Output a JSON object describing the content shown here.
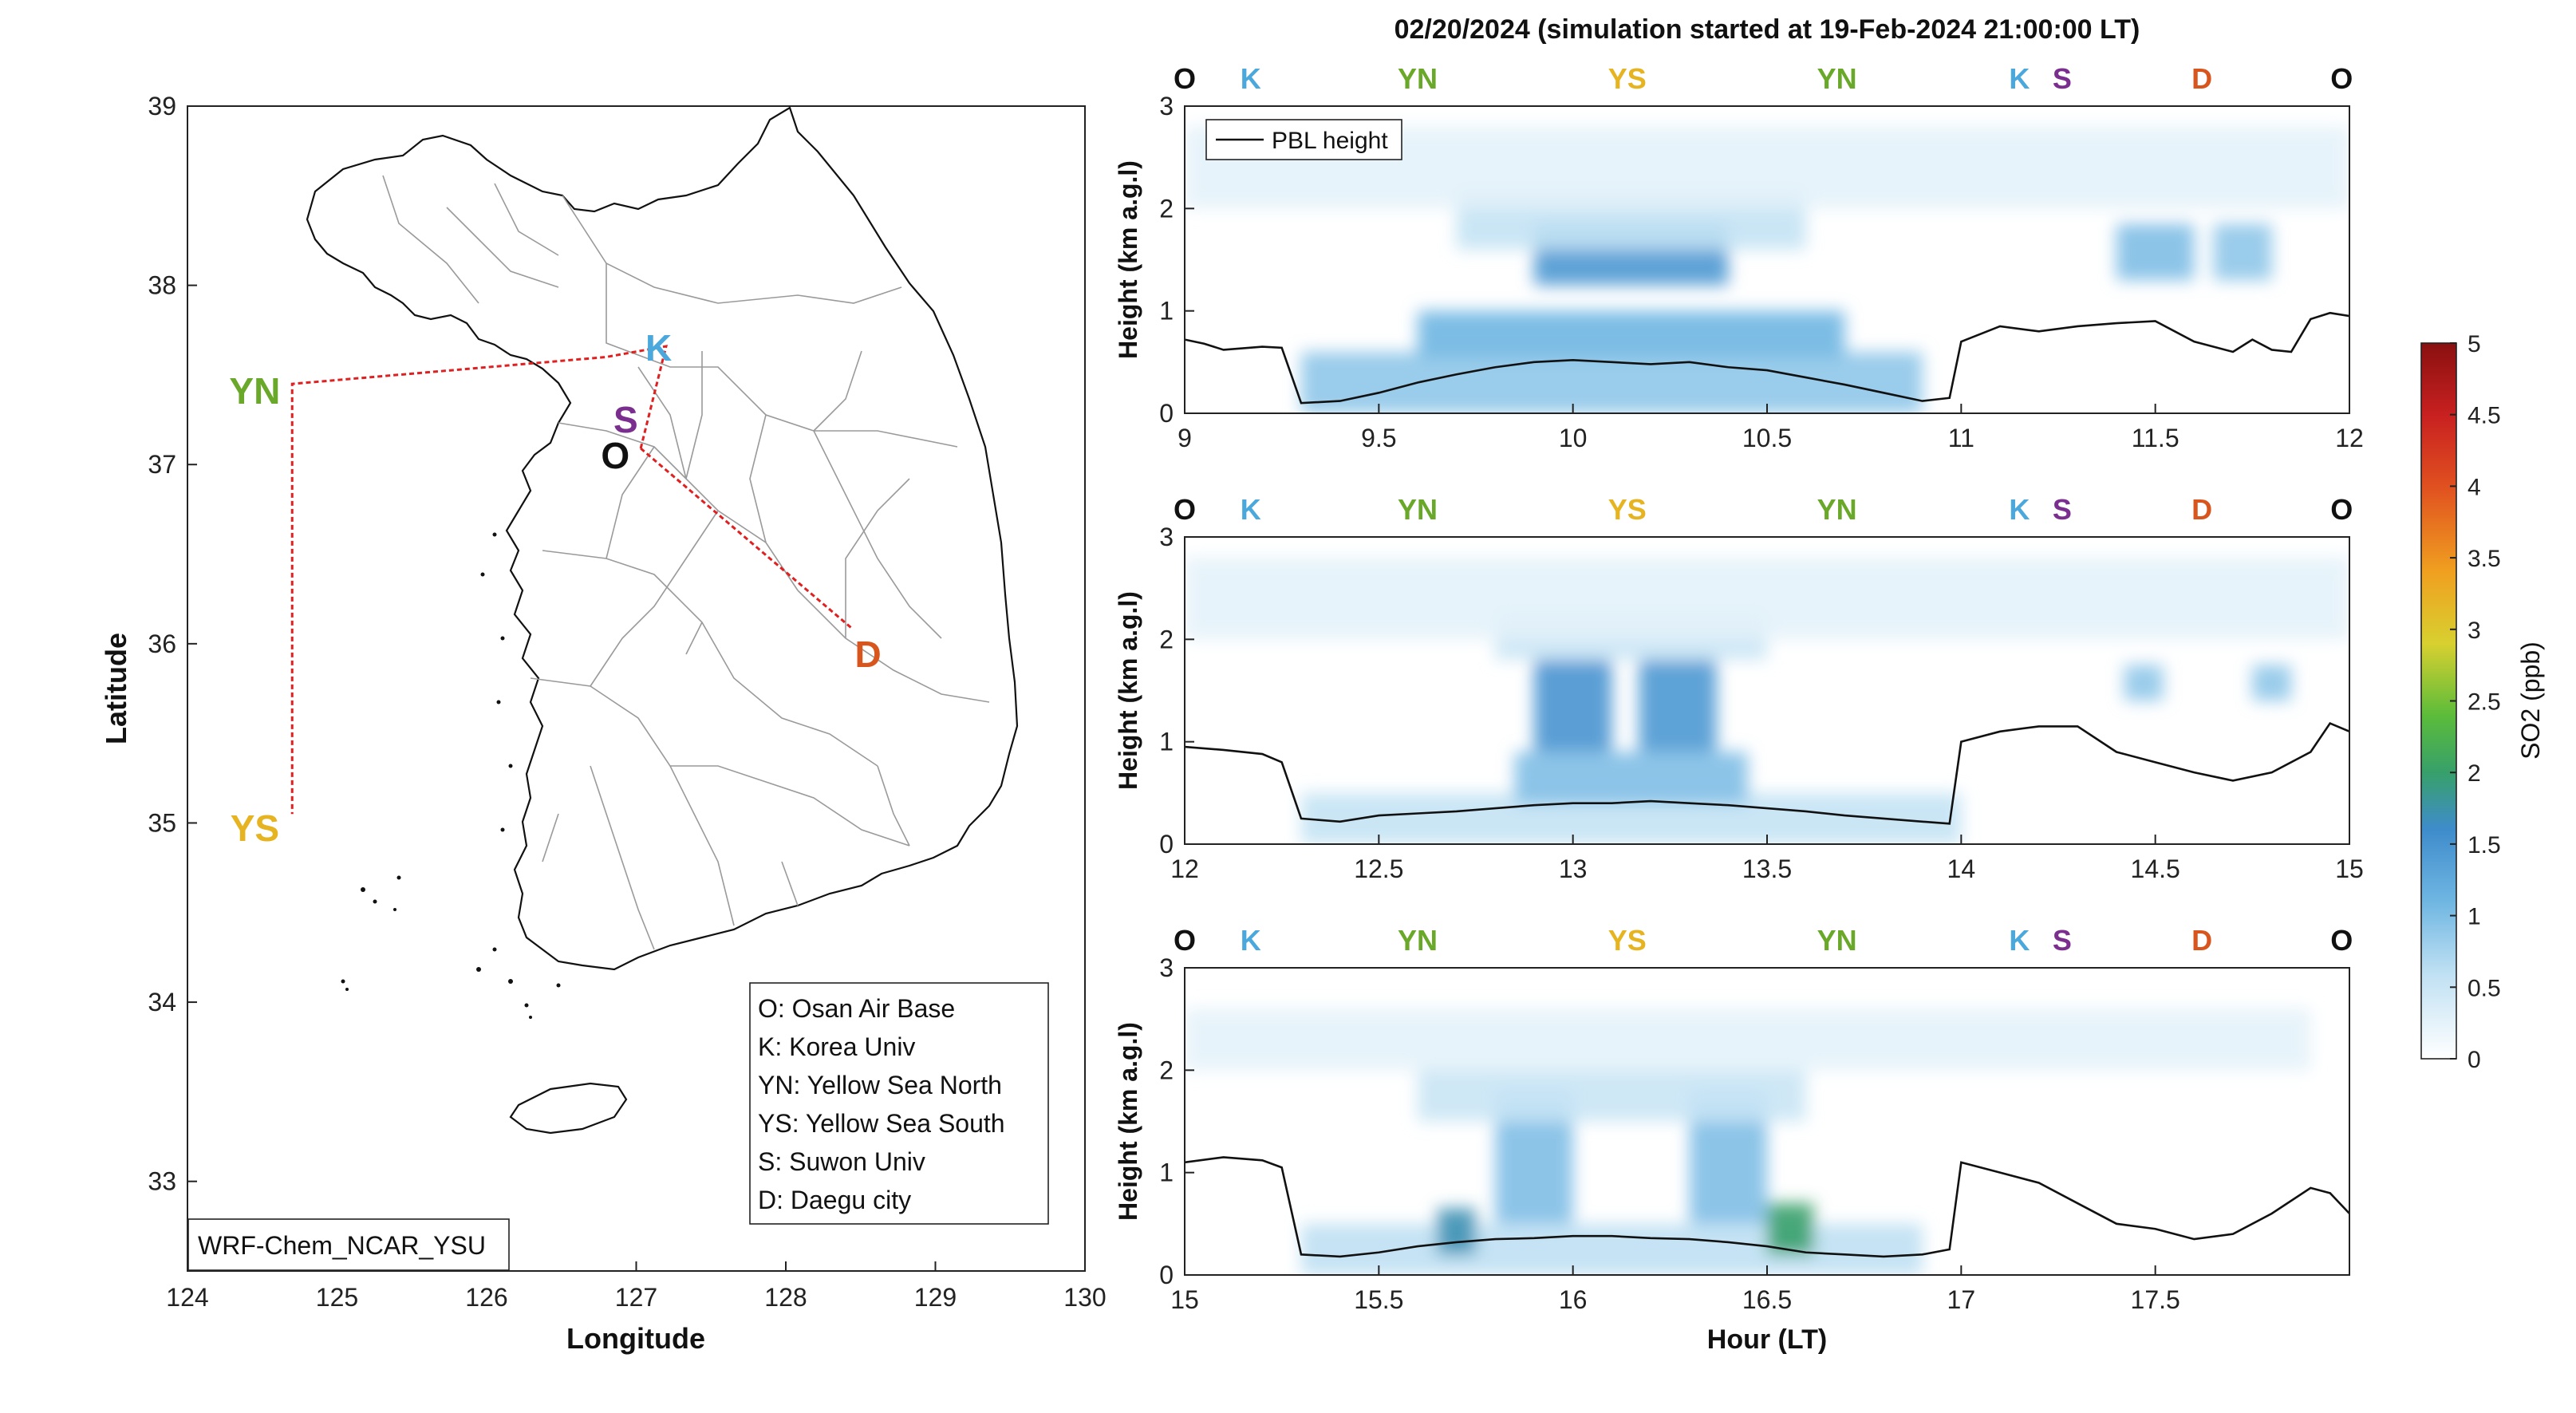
{
  "title": "02/20/2024 (simulation started at 19-Feb-2024 21:00:00 LT)",
  "colors": {
    "O": "#111111",
    "K": "#4aa8dc",
    "YN": "#6aa82a",
    "YS": "#e6b321",
    "S": "#7a2f8f",
    "D": "#d8561d",
    "track": "#e02020",
    "pbl": "#111111"
  },
  "map": {
    "xlabel": "Longitude",
    "ylabel": "Latitude",
    "xlim": [
      124,
      130
    ],
    "ylim": [
      32.5,
      39
    ],
    "xticks": [
      "124",
      "125",
      "126",
      "127",
      "128",
      "129",
      "130"
    ],
    "yticks": [
      "33",
      "34",
      "35",
      "36",
      "37",
      "38",
      "39"
    ],
    "model_label": "WRF-Chem_NCAR_YSU",
    "sites": [
      {
        "code": "K",
        "lon": 127.2,
        "lat": 37.7,
        "label_lon": 127.15,
        "label_lat": 37.66
      },
      {
        "code": "S",
        "lon": 126.98,
        "lat": 37.28,
        "label_lon": 126.93,
        "label_lat": 37.26
      },
      {
        "code": "O",
        "lon": 127.03,
        "lat": 37.09,
        "label_lon": 126.86,
        "label_lat": 37.06
      },
      {
        "code": "YN",
        "lon": 124.7,
        "lat": 37.45,
        "label_lon": 124.45,
        "label_lat": 37.42
      },
      {
        "code": "YS",
        "lon": 124.7,
        "lat": 35.05,
        "label_lon": 124.45,
        "label_lat": 34.98
      },
      {
        "code": "D",
        "lon": 128.58,
        "lat": 36.09,
        "label_lon": 128.55,
        "label_lat": 35.95
      }
    ],
    "track": [
      [
        127.03,
        37.09
      ],
      [
        127.2,
        37.66
      ],
      [
        126.8,
        37.6
      ],
      [
        124.7,
        37.45
      ],
      [
        124.7,
        35.05
      ]
    ],
    "track2": [
      [
        127.03,
        37.09
      ],
      [
        128.45,
        36.08
      ]
    ],
    "legend": [
      "O: Osan Air Base",
      "K: Korea Univ",
      "YN: Yellow Sea North",
      "YS: Yellow Sea South",
      "S: Suwon Univ",
      "D: Daegu city"
    ]
  },
  "curtains": [
    {
      "xlim": [
        9,
        12
      ],
      "xticks": [
        "9",
        "9.5",
        "10",
        "10.5",
        "11",
        "11.5",
        "12"
      ],
      "sites": [
        {
          "code": "O",
          "x": 9.0
        },
        {
          "code": "K",
          "x": 9.17
        },
        {
          "code": "YN",
          "x": 9.6
        },
        {
          "code": "YS",
          "x": 10.14
        },
        {
          "code": "YN",
          "x": 10.68
        },
        {
          "code": "K",
          "x": 11.15
        },
        {
          "code": "S",
          "x": 11.26
        },
        {
          "code": "D",
          "x": 11.62
        },
        {
          "code": "O",
          "x": 11.98
        }
      ],
      "pbl": {
        "x": [
          9.0,
          9.05,
          9.1,
          9.2,
          9.25,
          9.3,
          9.4,
          9.5,
          9.6,
          9.7,
          9.8,
          9.9,
          10.0,
          10.1,
          10.2,
          10.3,
          10.4,
          10.5,
          10.6,
          10.7,
          10.8,
          10.9,
          10.97,
          11.0,
          11.1,
          11.2,
          11.3,
          11.4,
          11.5,
          11.6,
          11.7,
          11.75,
          11.8,
          11.85,
          11.9,
          11.95,
          12.0
        ],
        "y": [
          0.72,
          0.68,
          0.62,
          0.65,
          0.64,
          0.1,
          0.12,
          0.2,
          0.3,
          0.38,
          0.45,
          0.5,
          0.52,
          0.5,
          0.48,
          0.5,
          0.45,
          0.42,
          0.35,
          0.28,
          0.2,
          0.12,
          0.15,
          0.7,
          0.85,
          0.8,
          0.85,
          0.88,
          0.9,
          0.7,
          0.6,
          0.72,
          0.62,
          0.6,
          0.92,
          0.98,
          0.95
        ]
      },
      "so2": [
        {
          "x0": 9.3,
          "x1": 10.9,
          "y0": 0.0,
          "y1": 0.6,
          "v": 0.9
        },
        {
          "x0": 9.6,
          "x1": 10.7,
          "y0": 0.55,
          "y1": 1.0,
          "v": 1.1
        },
        {
          "x0": 9.9,
          "x1": 10.4,
          "y0": 1.25,
          "y1": 1.85,
          "v": 1.45
        },
        {
          "x0": 9.7,
          "x1": 10.6,
          "y0": 1.6,
          "y1": 2.2,
          "v": 0.55
        },
        {
          "x0": 11.4,
          "x1": 11.6,
          "y0": 1.3,
          "y1": 1.85,
          "v": 1.0
        },
        {
          "x0": 11.65,
          "x1": 11.8,
          "y0": 1.3,
          "y1": 1.85,
          "v": 0.9
        },
        {
          "x0": 9.0,
          "x1": 12.0,
          "y0": 2.0,
          "y1": 2.8,
          "v": 0.25
        }
      ]
    },
    {
      "xlim": [
        12,
        15
      ],
      "xticks": [
        "12",
        "12.5",
        "13",
        "13.5",
        "14",
        "14.5",
        "15"
      ],
      "sites": [
        {
          "code": "O",
          "x": 12.0
        },
        {
          "code": "K",
          "x": 12.17
        },
        {
          "code": "YN",
          "x": 12.6
        },
        {
          "code": "YS",
          "x": 13.14
        },
        {
          "code": "YN",
          "x": 13.68
        },
        {
          "code": "K",
          "x": 14.15
        },
        {
          "code": "S",
          "x": 14.26
        },
        {
          "code": "D",
          "x": 14.62
        },
        {
          "code": "O",
          "x": 14.98
        }
      ],
      "pbl": {
        "x": [
          12.0,
          12.1,
          12.2,
          12.25,
          12.3,
          12.4,
          12.5,
          12.6,
          12.7,
          12.8,
          12.9,
          13.0,
          13.1,
          13.2,
          13.3,
          13.4,
          13.5,
          13.6,
          13.7,
          13.8,
          13.9,
          13.97,
          14.0,
          14.1,
          14.2,
          14.3,
          14.4,
          14.5,
          14.6,
          14.7,
          14.8,
          14.9,
          14.95,
          15.0
        ],
        "y": [
          0.95,
          0.92,
          0.88,
          0.8,
          0.25,
          0.22,
          0.28,
          0.3,
          0.32,
          0.35,
          0.38,
          0.4,
          0.4,
          0.42,
          0.4,
          0.38,
          0.35,
          0.32,
          0.28,
          0.25,
          0.22,
          0.2,
          1.0,
          1.1,
          1.15,
          1.15,
          0.9,
          0.8,
          0.7,
          0.62,
          0.7,
          0.9,
          1.18,
          1.1
        ]
      },
      "so2": [
        {
          "x0": 12.3,
          "x1": 14.0,
          "y0": 0.0,
          "y1": 0.5,
          "v": 0.55
        },
        {
          "x0": 12.85,
          "x1": 13.45,
          "y0": 0.4,
          "y1": 0.9,
          "v": 1.0
        },
        {
          "x0": 12.9,
          "x1": 13.1,
          "y0": 0.9,
          "y1": 1.8,
          "v": 1.5
        },
        {
          "x0": 13.17,
          "x1": 13.37,
          "y0": 0.9,
          "y1": 1.8,
          "v": 1.45
        },
        {
          "x0": 12.8,
          "x1": 13.5,
          "y0": 1.8,
          "y1": 2.3,
          "v": 0.5
        },
        {
          "x0": 14.42,
          "x1": 14.52,
          "y0": 1.4,
          "y1": 1.75,
          "v": 0.9
        },
        {
          "x0": 14.75,
          "x1": 14.85,
          "y0": 1.4,
          "y1": 1.75,
          "v": 0.9
        },
        {
          "x0": 12.0,
          "x1": 15.0,
          "y0": 2.0,
          "y1": 2.8,
          "v": 0.25
        }
      ]
    },
    {
      "xlim": [
        15,
        18
      ],
      "xticks": [
        "15",
        "15.5",
        "16",
        "16.5",
        "17",
        "17.5"
      ],
      "sites": [
        {
          "code": "O",
          "x": 15.0
        },
        {
          "code": "K",
          "x": 15.17
        },
        {
          "code": "YN",
          "x": 15.6
        },
        {
          "code": "YS",
          "x": 16.14
        },
        {
          "code": "YN",
          "x": 16.68
        },
        {
          "code": "K",
          "x": 17.15
        },
        {
          "code": "S",
          "x": 17.26
        },
        {
          "code": "D",
          "x": 17.62
        },
        {
          "code": "O",
          "x": 17.98
        }
      ],
      "pbl": {
        "x": [
          15.0,
          15.1,
          15.2,
          15.25,
          15.3,
          15.4,
          15.5,
          15.6,
          15.7,
          15.8,
          15.9,
          16.0,
          16.1,
          16.2,
          16.3,
          16.4,
          16.5,
          16.6,
          16.7,
          16.8,
          16.9,
          16.97,
          17.0,
          17.1,
          17.2,
          17.3,
          17.4,
          17.5,
          17.6,
          17.7,
          17.8,
          17.9,
          17.95,
          18.0
        ],
        "y": [
          1.1,
          1.15,
          1.12,
          1.05,
          0.2,
          0.18,
          0.22,
          0.28,
          0.32,
          0.35,
          0.36,
          0.38,
          0.38,
          0.36,
          0.35,
          0.32,
          0.28,
          0.22,
          0.2,
          0.18,
          0.2,
          0.25,
          1.1,
          1.0,
          0.9,
          0.7,
          0.5,
          0.45,
          0.35,
          0.4,
          0.6,
          0.85,
          0.8,
          0.6
        ]
      },
      "so2": [
        {
          "x0": 15.3,
          "x1": 16.9,
          "y0": 0.0,
          "y1": 0.5,
          "v": 0.6
        },
        {
          "x0": 15.65,
          "x1": 15.75,
          "y0": 0.2,
          "y1": 0.65,
          "v": 1.7
        },
        {
          "x0": 16.5,
          "x1": 16.62,
          "y0": 0.2,
          "y1": 0.7,
          "v": 2.0
        },
        {
          "x0": 15.8,
          "x1": 16.0,
          "y0": 0.5,
          "y1": 1.8,
          "v": 1.0
        },
        {
          "x0": 16.3,
          "x1": 16.5,
          "y0": 0.5,
          "y1": 1.8,
          "v": 1.0
        },
        {
          "x0": 15.6,
          "x1": 16.6,
          "y0": 1.5,
          "y1": 2.0,
          "v": 0.5
        },
        {
          "x0": 15.0,
          "x1": 17.9,
          "y0": 2.0,
          "y1": 2.6,
          "v": 0.25
        }
      ]
    }
  ],
  "curtain_axes": {
    "ylabel": "Height (km a.g.l)",
    "xlabel": "Hour (LT)",
    "ylim": [
      0,
      3
    ],
    "yticks": [
      "0",
      "1",
      "2",
      "3"
    ],
    "legend_label": "PBL height"
  },
  "colorbar": {
    "label": "SO2 (ppb)",
    "range": [
      0,
      5
    ],
    "ticks": [
      "0",
      "0.5",
      "1",
      "1.5",
      "2",
      "2.5",
      "3",
      "3.5",
      "4",
      "4.5",
      "5"
    ]
  }
}
